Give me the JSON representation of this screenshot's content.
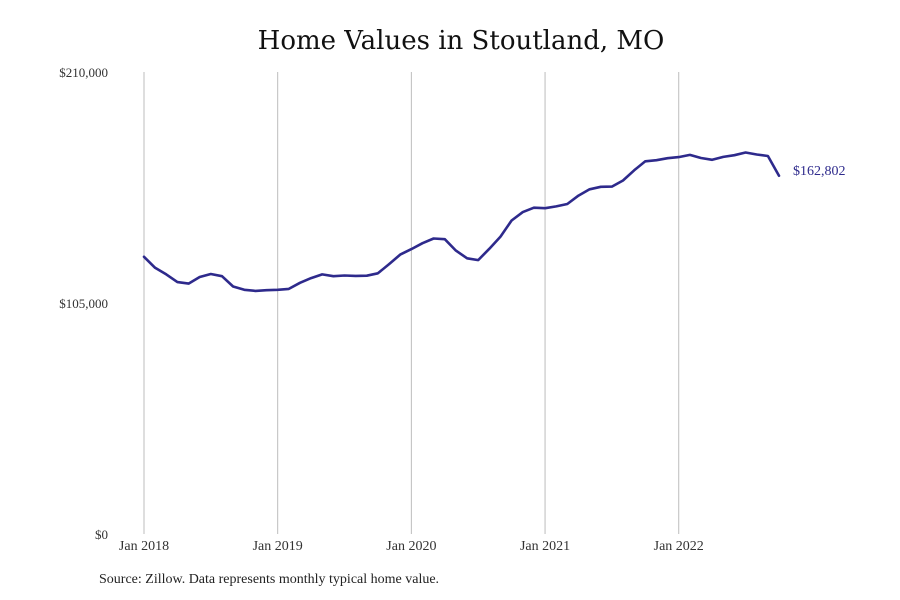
{
  "chart_data": {
    "type": "line",
    "title": "Home Values in Stoutland, MO",
    "source_note": "Source: Zillow. Data represents monthly typical home value.",
    "ylim": [
      0,
      210000
    ],
    "y_ticks": [
      {
        "value": 0,
        "label": "$0"
      },
      {
        "value": 105000,
        "label": "$105,000"
      },
      {
        "value": 210000,
        "label": "$210,000"
      }
    ],
    "x_range": [
      "2018-01",
      "2022-10"
    ],
    "x_ticks": [
      {
        "value": "2018-01",
        "label": "Jan 2018"
      },
      {
        "value": "2019-01",
        "label": "Jan 2019"
      },
      {
        "value": "2020-01",
        "label": "Jan 2020"
      },
      {
        "value": "2021-01",
        "label": "Jan 2021"
      },
      {
        "value": "2022-01",
        "label": "Jan 2022"
      }
    ],
    "grid": "vertical",
    "colors": {
      "line": "#2e2a8c",
      "grid": "#bdbdbd"
    },
    "end_label": "$162,802",
    "series": [
      {
        "x": [
          "2018-01",
          "2018-02",
          "2018-03",
          "2018-04",
          "2018-05",
          "2018-06",
          "2018-07",
          "2018-08",
          "2018-09",
          "2018-10",
          "2018-11",
          "2018-12",
          "2019-01",
          "2019-02",
          "2019-03",
          "2019-04",
          "2019-05",
          "2019-06",
          "2019-07",
          "2019-08",
          "2019-09",
          "2019-10",
          "2019-11",
          "2019-12",
          "2020-01",
          "2020-02",
          "2020-03",
          "2020-04",
          "2020-05",
          "2020-06",
          "2020-07",
          "2020-08",
          "2020-09",
          "2020-10",
          "2020-11",
          "2020-12",
          "2021-01",
          "2021-02",
          "2021-03",
          "2021-04",
          "2021-05",
          "2021-06",
          "2021-07",
          "2021-08",
          "2021-09",
          "2021-10",
          "2021-11",
          "2021-12",
          "2022-01",
          "2022-02",
          "2022-03",
          "2022-04",
          "2022-05",
          "2022-06",
          "2022-07",
          "2022-08",
          "2022-09",
          "2022-10"
        ],
        "values": [
          126000,
          121000,
          118000,
          114500,
          113800,
          116800,
          118200,
          117200,
          112500,
          111000,
          110500,
          110800,
          111000,
          111400,
          114200,
          116300,
          118000,
          117200,
          117500,
          117300,
          117400,
          118500,
          122700,
          127000,
          129500,
          132200,
          134300,
          134000,
          128800,
          125300,
          124500,
          129700,
          135200,
          142500,
          146300,
          148300,
          148100,
          148900,
          150000,
          153800,
          156700,
          157800,
          157900,
          160700,
          165300,
          169400,
          169900,
          170800,
          171300,
          172300,
          170900,
          170100,
          171400,
          172200,
          173400,
          172500,
          171800,
          162802
        ]
      }
    ]
  }
}
